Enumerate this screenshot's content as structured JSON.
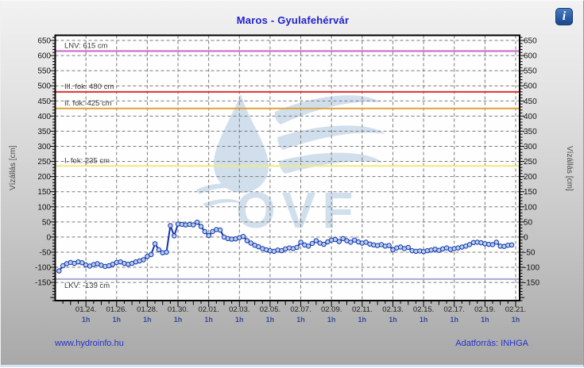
{
  "header": {
    "title": "Maros - Gyulafehérvár",
    "info_icon_glyph": "i"
  },
  "footer": {
    "site_link": "www.hydroinfo.hu",
    "source": "Adatforrás: INHGA"
  },
  "chart_data": {
    "type": "line",
    "title": "Maros - Gyulafehérvár",
    "ylabel_left": "Vízállás [cm]",
    "ylabel_right": "Vízállás [cm]",
    "grid": true,
    "ylim": [
      -210,
      667
    ],
    "y_ticks": [
      -150,
      -100,
      -50,
      0,
      50,
      100,
      150,
      200,
      250,
      300,
      350,
      400,
      450,
      500,
      550,
      600,
      650
    ],
    "x_domain_days": [
      0,
      30.26
    ],
    "x_ticks": [
      {
        "t": 2,
        "label": "01.24.",
        "sub": "1h"
      },
      {
        "t": 4,
        "label": "01.26.",
        "sub": "1h"
      },
      {
        "t": 6,
        "label": "01.28.",
        "sub": "1h"
      },
      {
        "t": 8,
        "label": "01.30.",
        "sub": "1h"
      },
      {
        "t": 10,
        "label": "02.01.",
        "sub": "1h"
      },
      {
        "t": 12,
        "label": "02.03.",
        "sub": "1h"
      },
      {
        "t": 14,
        "label": "02.05.",
        "sub": "1h"
      },
      {
        "t": 16,
        "label": "02.07.",
        "sub": "1h"
      },
      {
        "t": 18,
        "label": "02.09.",
        "sub": "1h"
      },
      {
        "t": 20,
        "label": "02.11.",
        "sub": "1h"
      },
      {
        "t": 22,
        "label": "02.13.",
        "sub": "1h"
      },
      {
        "t": 24,
        "label": "02.15.",
        "sub": "1h"
      },
      {
        "t": 26,
        "label": "02.17.",
        "sub": "1h"
      },
      {
        "t": 28,
        "label": "02.19.",
        "sub": "1h"
      },
      {
        "t": 30,
        "label": "02.21.",
        "sub": "1h"
      }
    ],
    "reference_lines": [
      {
        "name": "LNV",
        "label": "LNV: 615 cm",
        "value": 615,
        "color": "#c963c9",
        "label_below": false
      },
      {
        "name": "III. fok",
        "label": "III. fok: 480 cm",
        "value": 480,
        "color": "#e03030",
        "label_below": false
      },
      {
        "name": "II. fok",
        "label": "II. fok: 425 cm",
        "value": 425,
        "color": "#e2a235",
        "label_below": false
      },
      {
        "name": "I. fok",
        "label": "I. fok: 235 cm",
        "value": 235,
        "color": "#efe97d",
        "label_below": false
      },
      {
        "name": "LKV",
        "label": "LKV: -139 cm",
        "value": -139,
        "color": "#a8a8d8",
        "label_below": true
      }
    ],
    "series": [
      {
        "name": "vízállás (cm)",
        "line_color": "#1233b0",
        "marker_fill": "#b8cfe8",
        "t_start_days": 0.25,
        "t_step_days": 0.25,
        "values": [
          -112,
          -95,
          -88,
          -84,
          -87,
          -82,
          -85,
          -92,
          -96,
          -91,
          -88,
          -93,
          -97,
          -95,
          -90,
          -84,
          -82,
          -87,
          -90,
          -87,
          -82,
          -79,
          -75,
          -64,
          -58,
          -22,
          -42,
          -52,
          -50,
          38,
          4,
          43,
          42,
          40,
          42,
          40,
          49,
          35,
          18,
          5,
          18,
          25,
          23,
          0,
          -5,
          -7,
          -6,
          -2,
          2,
          -12,
          -20,
          -27,
          -32,
          -38,
          -42,
          -45,
          -47,
          -43,
          -45,
          -39,
          -36,
          -38,
          -34,
          -17,
          -26,
          -30,
          -21,
          -12,
          -20,
          -24,
          -16,
          -10,
          -8,
          -15,
          -5,
          -12,
          -17,
          -10,
          -16,
          -20,
          -17,
          -23,
          -26,
          -28,
          -25,
          -30,
          -28,
          -42,
          -36,
          -33,
          -38,
          -34,
          -45,
          -47,
          -46,
          -48,
          -45,
          -43,
          -40,
          -44,
          -39,
          -36,
          -41,
          -38,
          -36,
          -33,
          -30,
          -25,
          -18,
          -17,
          -19,
          -22,
          -24,
          -25,
          -17,
          -30,
          -31,
          -27,
          -26
        ]
      }
    ],
    "watermark_text": "OVF",
    "colors": {
      "plot_bg": "#fefefe",
      "frame": "#000000",
      "grid": "#7a7a7a",
      "tick": "#000000",
      "watermark": "#cddcec"
    }
  }
}
